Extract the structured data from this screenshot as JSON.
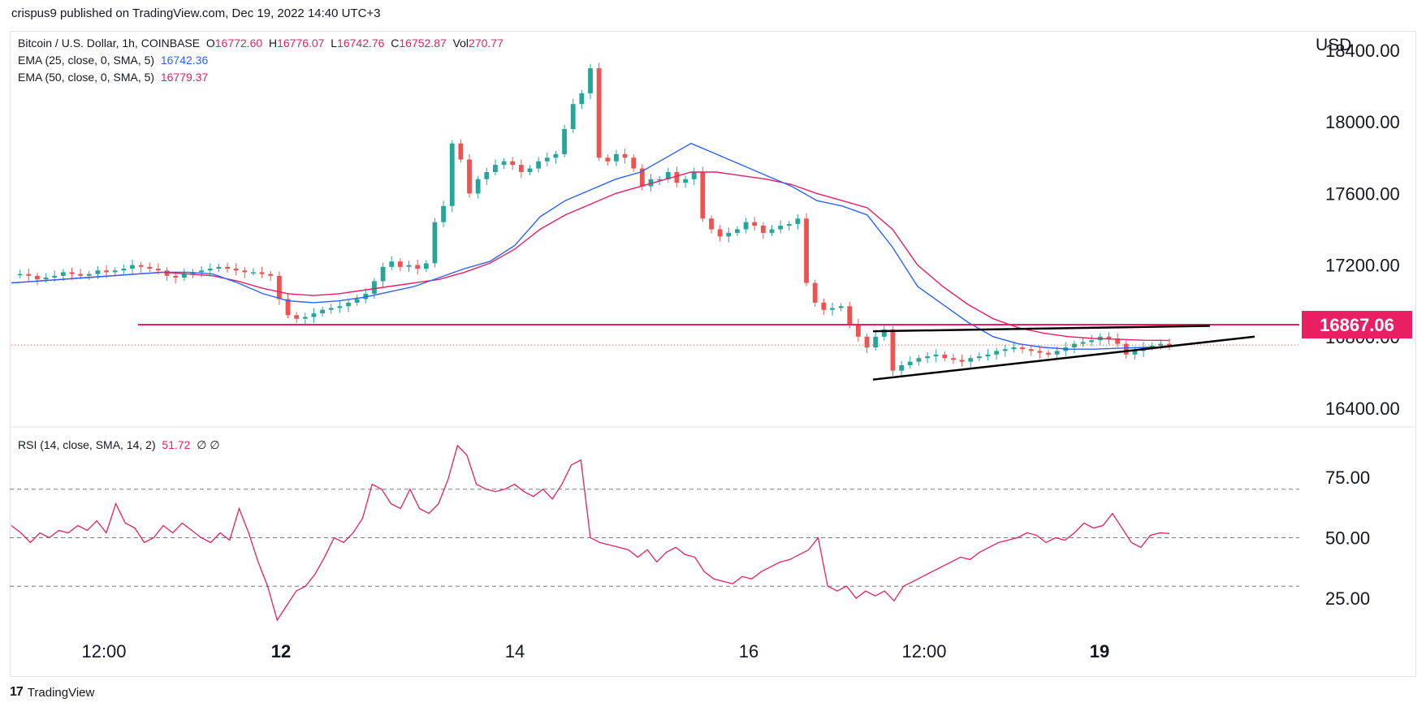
{
  "header": {
    "text": "crispus9 published on TradingView.com, Dec 19, 2022 14:40 UTC+3"
  },
  "legend": {
    "symbol": "Bitcoin / U.S. Dollar, 1h, COINBASE",
    "o_label": "O",
    "o": "16772.60",
    "h_label": "H",
    "h": "16776.07",
    "l_label": "L",
    "l": "16742.76",
    "c_label": "C",
    "c": "16752.87",
    "vol_label": "Vol",
    "vol": "270.77",
    "ema25_label": "EMA (25, close, 0, SMA, 5)",
    "ema25": "16742.36",
    "ema50_label": "EMA (50, close, 0, SMA, 5)",
    "ema50": "16779.37",
    "rsi_label": "RSI (14, close, SMA, 14, 2)",
    "rsi": "51.72",
    "rsi_extra": "∅  ∅"
  },
  "footer": {
    "brand": "TradingView",
    "logo": "17"
  },
  "colors": {
    "up": "#26a69a",
    "down": "#ef5350",
    "ema25": "#2962ff",
    "ema50": "#e91e63",
    "rsi": "#e91e63",
    "hline": "#e91e63",
    "trend": "#000000",
    "grid": "#787b86"
  },
  "chart_data": [
    {
      "type": "candlestick",
      "title": "Bitcoin / U.S. Dollar, 1h, COINBASE",
      "currency": "USD",
      "ylim": [
        16300,
        18500
      ],
      "y_ticks": [
        "18400.00",
        "18000.00",
        "17600.00",
        "17200.00",
        "16800.00",
        "16400.00"
      ],
      "x_ticks": [
        "12:00",
        "12",
        "14",
        "16",
        "12:00",
        "19"
      ],
      "horizontal_line": {
        "value": 16867.06,
        "label": "16867.06"
      },
      "current_price": 16752.87,
      "triangle_pattern": "ascending triangle / rising wedge drawn with two trendlines",
      "price_path": [
        17150,
        17150,
        17140,
        17120,
        17130,
        17140,
        17160,
        17150,
        17140,
        17150,
        17170,
        17160,
        17170,
        17180,
        17200,
        17190,
        17180,
        17170,
        17140,
        17130,
        17150,
        17160,
        17170,
        17180,
        17190,
        17180,
        17170,
        17160,
        17160,
        17150,
        17140,
        17010,
        16920,
        16900,
        16910,
        16930,
        16950,
        16960,
        16970,
        16990,
        17010,
        17040,
        17110,
        17190,
        17220,
        17190,
        17200,
        17180,
        17210,
        17440,
        17530,
        17880,
        17790,
        17600,
        17680,
        17720,
        17760,
        17780,
        17760,
        17720,
        17740,
        17780,
        17800,
        17820,
        17960,
        18100,
        18160,
        18300,
        17800,
        17780,
        17820,
        17800,
        17740,
        17640,
        17680,
        17680,
        17720,
        17660,
        17680,
        17720,
        17460,
        17400,
        17360,
        17380,
        17400,
        17440,
        17420,
        17380,
        17400,
        17420,
        17430,
        17460,
        17100,
        16990,
        16950,
        16960,
        16970,
        16870,
        16800,
        16740,
        16800,
        16840,
        16610,
        16640,
        16660,
        16680,
        16690,
        16700,
        16680,
        16670,
        16660,
        16680,
        16690,
        16700,
        16720,
        16730,
        16740,
        16730,
        16720,
        16710,
        16700,
        16720,
        16740,
        16760,
        16770,
        16780,
        16800,
        16790,
        16760,
        16700,
        16720,
        16740,
        16750,
        16760,
        16752.87
      ],
      "ema25_path": [
        17100,
        17110,
        17120,
        17130,
        17140,
        17150,
        17160,
        17160,
        17150,
        17100,
        17040,
        17000,
        16990,
        17000,
        17020,
        17050,
        17080,
        17130,
        17180,
        17220,
        17310,
        17470,
        17560,
        17620,
        17680,
        17720,
        17800,
        17880,
        17820,
        17760,
        17700,
        17640,
        17560,
        17530,
        17480,
        17300,
        17080,
        16980,
        16880,
        16800,
        16760,
        16740,
        16730,
        16730,
        16735,
        16740,
        16742
      ],
      "ema50_path": [
        17100,
        17110,
        17120,
        17130,
        17140,
        17150,
        17160,
        17150,
        17140,
        17110,
        17070,
        17040,
        17030,
        17040,
        17060,
        17080,
        17100,
        17120,
        17160,
        17210,
        17290,
        17400,
        17480,
        17540,
        17600,
        17640,
        17680,
        17720,
        17720,
        17700,
        17680,
        17650,
        17600,
        17560,
        17520,
        17400,
        17200,
        17080,
        16980,
        16900,
        16850,
        16820,
        16800,
        16790,
        16785,
        16780,
        16779
      ]
    },
    {
      "type": "line",
      "title": "RSI (14, close, SMA, 14, 2)",
      "ylim": [
        10,
        95
      ],
      "y_ticks": [
        "75.00",
        "50.00",
        "25.00"
      ],
      "bands": [
        30,
        50,
        70
      ],
      "series": [
        {
          "name": "",
          "values": [
            55,
            52,
            48,
            52,
            50,
            53,
            52,
            55,
            53,
            57,
            52,
            64,
            56,
            54,
            48,
            50,
            55,
            52,
            56,
            53,
            50,
            48,
            52,
            49,
            62,
            52,
            40,
            30,
            16,
            22,
            28,
            30,
            35,
            42,
            50,
            48,
            52,
            58,
            72,
            70,
            64,
            62,
            70,
            62,
            60,
            64,
            74,
            88,
            84,
            72,
            70,
            69,
            70,
            72,
            69,
            67,
            70,
            66,
            72,
            80,
            82,
            50,
            48,
            47,
            46,
            45,
            42,
            45,
            40,
            44,
            46,
            43,
            42,
            36,
            33,
            32,
            31,
            34,
            33,
            36,
            38,
            40,
            41,
            43,
            45,
            50,
            30,
            28,
            30,
            25,
            28,
            26,
            28,
            24,
            30,
            32,
            34,
            36,
            38,
            40,
            42,
            41,
            44,
            46,
            48,
            49,
            50,
            52,
            51,
            48,
            50,
            49,
            52,
            56,
            54,
            55,
            60,
            54,
            48,
            46,
            51,
            52,
            51.72
          ]
        }
      ]
    }
  ]
}
